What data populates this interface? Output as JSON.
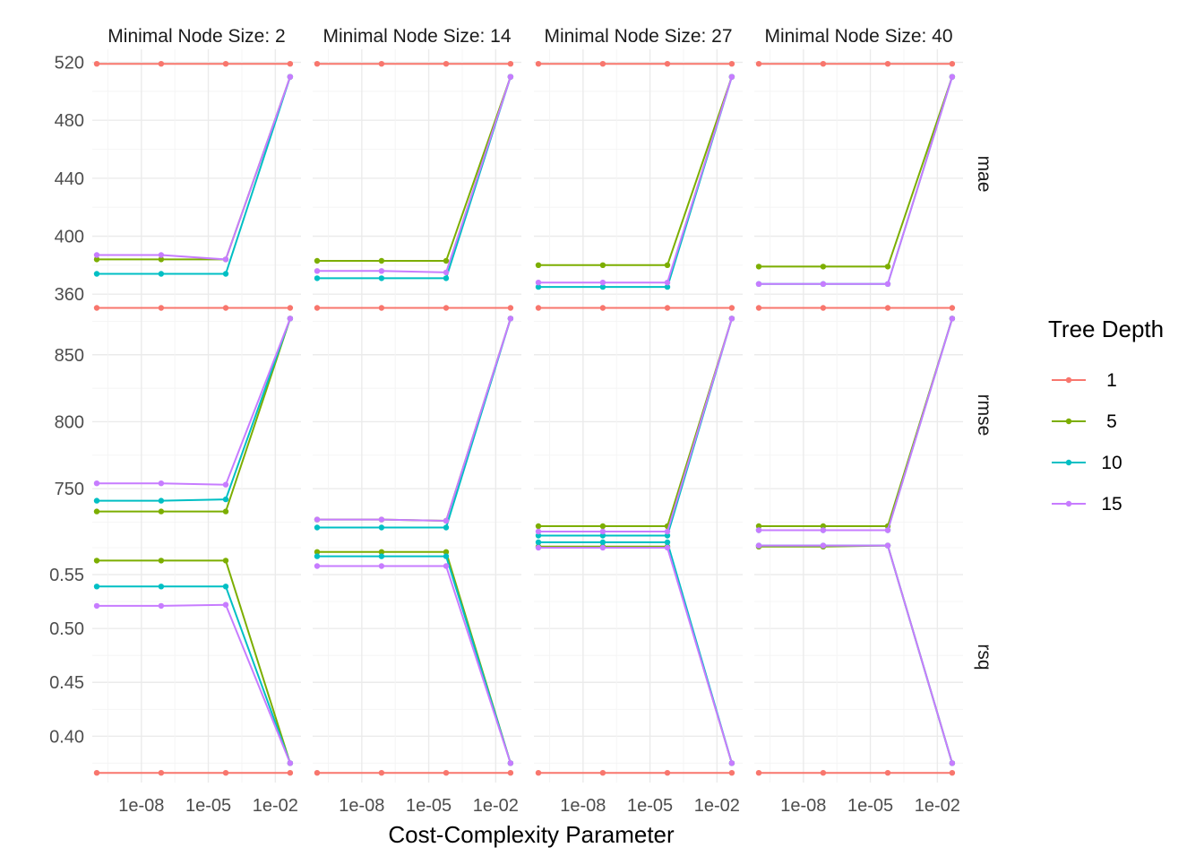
{
  "chart_data": {
    "type": "line",
    "x_scale": "log10",
    "x_values": [
      1e-10,
      7.7e-08,
      6e-05,
      0.046
    ],
    "x_ticks": [
      {
        "value": 1e-08,
        "label": "1e-08"
      },
      {
        "value": 1e-05,
        "label": "1e-05"
      },
      {
        "value": 0.01,
        "label": "1e-02"
      }
    ],
    "xlabel": "Cost-Complexity Parameter",
    "ylabel": "",
    "grid": true,
    "legend": {
      "title": "Tree Depth",
      "placement": "right",
      "entries": [
        {
          "label": "1",
          "color": "#F8766D"
        },
        {
          "label": "5",
          "color": "#7CAE00"
        },
        {
          "label": "10",
          "color": "#00BFC4"
        },
        {
          "label": "15",
          "color": "#C77CFF"
        }
      ]
    },
    "facet_columns": [
      {
        "label": "Minimal Node Size: 2"
      },
      {
        "label": "Minimal Node Size: 14"
      },
      {
        "label": "Minimal Node Size: 27"
      },
      {
        "label": "Minimal Node Size: 40"
      }
    ],
    "facet_rows": [
      {
        "label": "mae",
        "ylim": [
          357,
          529
        ],
        "y_ticks": [
          360,
          400,
          440,
          480,
          520
        ],
        "y_tick_labels": [
          "360",
          "400",
          "440",
          "480",
          "520"
        ],
        "panels": [
          [
            {
              "name": "1",
              "values": [
                519,
                519,
                519,
                519
              ]
            },
            {
              "name": "5",
              "values": [
                384,
                384,
                384,
                510
              ]
            },
            {
              "name": "10",
              "values": [
                374,
                374,
                374,
                510
              ]
            },
            {
              "name": "15",
              "values": [
                387,
                387,
                384,
                510
              ]
            }
          ],
          [
            {
              "name": "1",
              "values": [
                519,
                519,
                519,
                519
              ]
            },
            {
              "name": "5",
              "values": [
                383,
                383,
                383,
                510
              ]
            },
            {
              "name": "10",
              "values": [
                371,
                371,
                371,
                510
              ]
            },
            {
              "name": "15",
              "values": [
                376,
                376,
                375,
                510
              ]
            }
          ],
          [
            {
              "name": "1",
              "values": [
                519,
                519,
                519,
                519
              ]
            },
            {
              "name": "5",
              "values": [
                380,
                380,
                380,
                510
              ]
            },
            {
              "name": "10",
              "values": [
                365,
                365,
                365,
                510
              ]
            },
            {
              "name": "15",
              "values": [
                368,
                368,
                368,
                510
              ]
            }
          ],
          [
            {
              "name": "1",
              "values": [
                519,
                519,
                519,
                519
              ]
            },
            {
              "name": "5",
              "values": [
                379,
                379,
                379,
                510
              ]
            },
            {
              "name": "10",
              "values": [
                367,
                367,
                367,
                510
              ]
            },
            {
              "name": "15",
              "values": [
                367,
                367,
                367,
                510
              ]
            }
          ]
        ]
      },
      {
        "label": "rmse",
        "ylim": [
          718,
          892
        ],
        "y_ticks": [
          750,
          800,
          850
        ],
        "y_tick_labels": [
          "750",
          "800",
          "850"
        ],
        "panels": [
          [
            {
              "name": "1",
              "values": [
                885,
                885,
                885,
                885
              ]
            },
            {
              "name": "5",
              "values": [
                733,
                733,
                733,
                877
              ]
            },
            {
              "name": "10",
              "values": [
                741,
                741,
                742,
                877
              ]
            },
            {
              "name": "15",
              "values": [
                754,
                754,
                753,
                877
              ]
            }
          ],
          [
            {
              "name": "1",
              "values": [
                885,
                885,
                885,
                885
              ]
            },
            {
              "name": "5",
              "values": [
                727,
                727,
                726,
                877
              ]
            },
            {
              "name": "10",
              "values": [
                721,
                721,
                721,
                877
              ]
            },
            {
              "name": "15",
              "values": [
                727,
                727,
                726,
                877
              ]
            }
          ],
          [
            {
              "name": "1",
              "values": [
                885,
                885,
                885,
                885
              ]
            },
            {
              "name": "5",
              "values": [
                722,
                722,
                722,
                877
              ]
            },
            {
              "name": "10",
              "values": [
                715,
                715,
                715,
                877
              ]
            },
            {
              "name": "15",
              "values": [
                718,
                718,
                718,
                877
              ]
            }
          ],
          [
            {
              "name": "1",
              "values": [
                885,
                885,
                885,
                885
              ]
            },
            {
              "name": "5",
              "values": [
                722,
                722,
                722,
                877
              ]
            },
            {
              "name": "10",
              "values": [
                719,
                719,
                719,
                877
              ]
            },
            {
              "name": "15",
              "values": [
                719,
                719,
                719,
                877
              ]
            }
          ]
        ]
      },
      {
        "label": "rsq",
        "ylim": [
          0.357,
          0.59
        ],
        "y_ticks": [
          0.4,
          0.45,
          0.5,
          0.55
        ],
        "y_tick_labels": [
          "0.40",
          "0.45",
          "0.50",
          "0.55"
        ],
        "panels": [
          [
            {
              "name": "1",
              "values": [
                0.366,
                0.366,
                0.366,
                0.366
              ]
            },
            {
              "name": "5",
              "values": [
                0.563,
                0.563,
                0.563,
                0.375
              ]
            },
            {
              "name": "10",
              "values": [
                0.539,
                0.539,
                0.539,
                0.375
              ]
            },
            {
              "name": "15",
              "values": [
                0.521,
                0.521,
                0.522,
                0.375
              ]
            }
          ],
          [
            {
              "name": "1",
              "values": [
                0.366,
                0.366,
                0.366,
                0.366
              ]
            },
            {
              "name": "5",
              "values": [
                0.571,
                0.571,
                0.571,
                0.375
              ]
            },
            {
              "name": "10",
              "values": [
                0.567,
                0.567,
                0.567,
                0.375
              ]
            },
            {
              "name": "15",
              "values": [
                0.558,
                0.558,
                0.558,
                0.375
              ]
            }
          ],
          [
            {
              "name": "1",
              "values": [
                0.366,
                0.366,
                0.366,
                0.366
              ]
            },
            {
              "name": "5",
              "values": [
                0.576,
                0.576,
                0.576,
                0.375
              ]
            },
            {
              "name": "10",
              "values": [
                0.58,
                0.58,
                0.58,
                0.375
              ]
            },
            {
              "name": "15",
              "values": [
                0.575,
                0.575,
                0.575,
                0.375
              ]
            }
          ],
          [
            {
              "name": "1",
              "values": [
                0.366,
                0.366,
                0.366,
                0.366
              ]
            },
            {
              "name": "5",
              "values": [
                0.576,
                0.576,
                0.577,
                0.375
              ]
            },
            {
              "name": "10",
              "values": [
                0.577,
                0.577,
                0.577,
                0.375
              ]
            },
            {
              "name": "15",
              "values": [
                0.577,
                0.577,
                0.577,
                0.375
              ]
            }
          ]
        ]
      }
    ]
  }
}
